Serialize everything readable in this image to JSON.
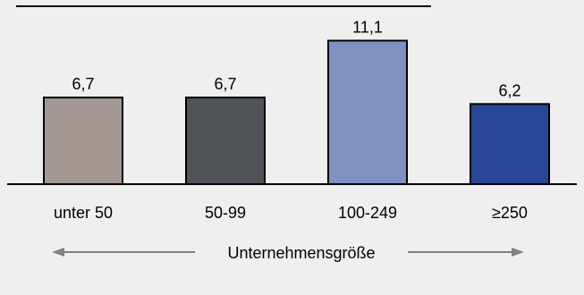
{
  "chart_data": {
    "type": "bar",
    "title": "",
    "categories": [
      "unter 50",
      "50-99",
      "100-249",
      "≥250"
    ],
    "values": [
      6.7,
      6.7,
      11.1,
      6.2
    ],
    "value_labels": [
      "6,7",
      "6,7",
      "11,1",
      "6,2"
    ],
    "bar_colors": [
      "#a39893",
      "#505357",
      "#8090c0",
      "#2a4697"
    ],
    "xlabel": "Unternehmensgröße",
    "ylabel": "",
    "ylim": [
      0,
      13.0
    ],
    "grid": false,
    "legend": "none"
  },
  "colors": {
    "background": "#efefef",
    "axis": "#000000",
    "arrow": "#808080"
  }
}
